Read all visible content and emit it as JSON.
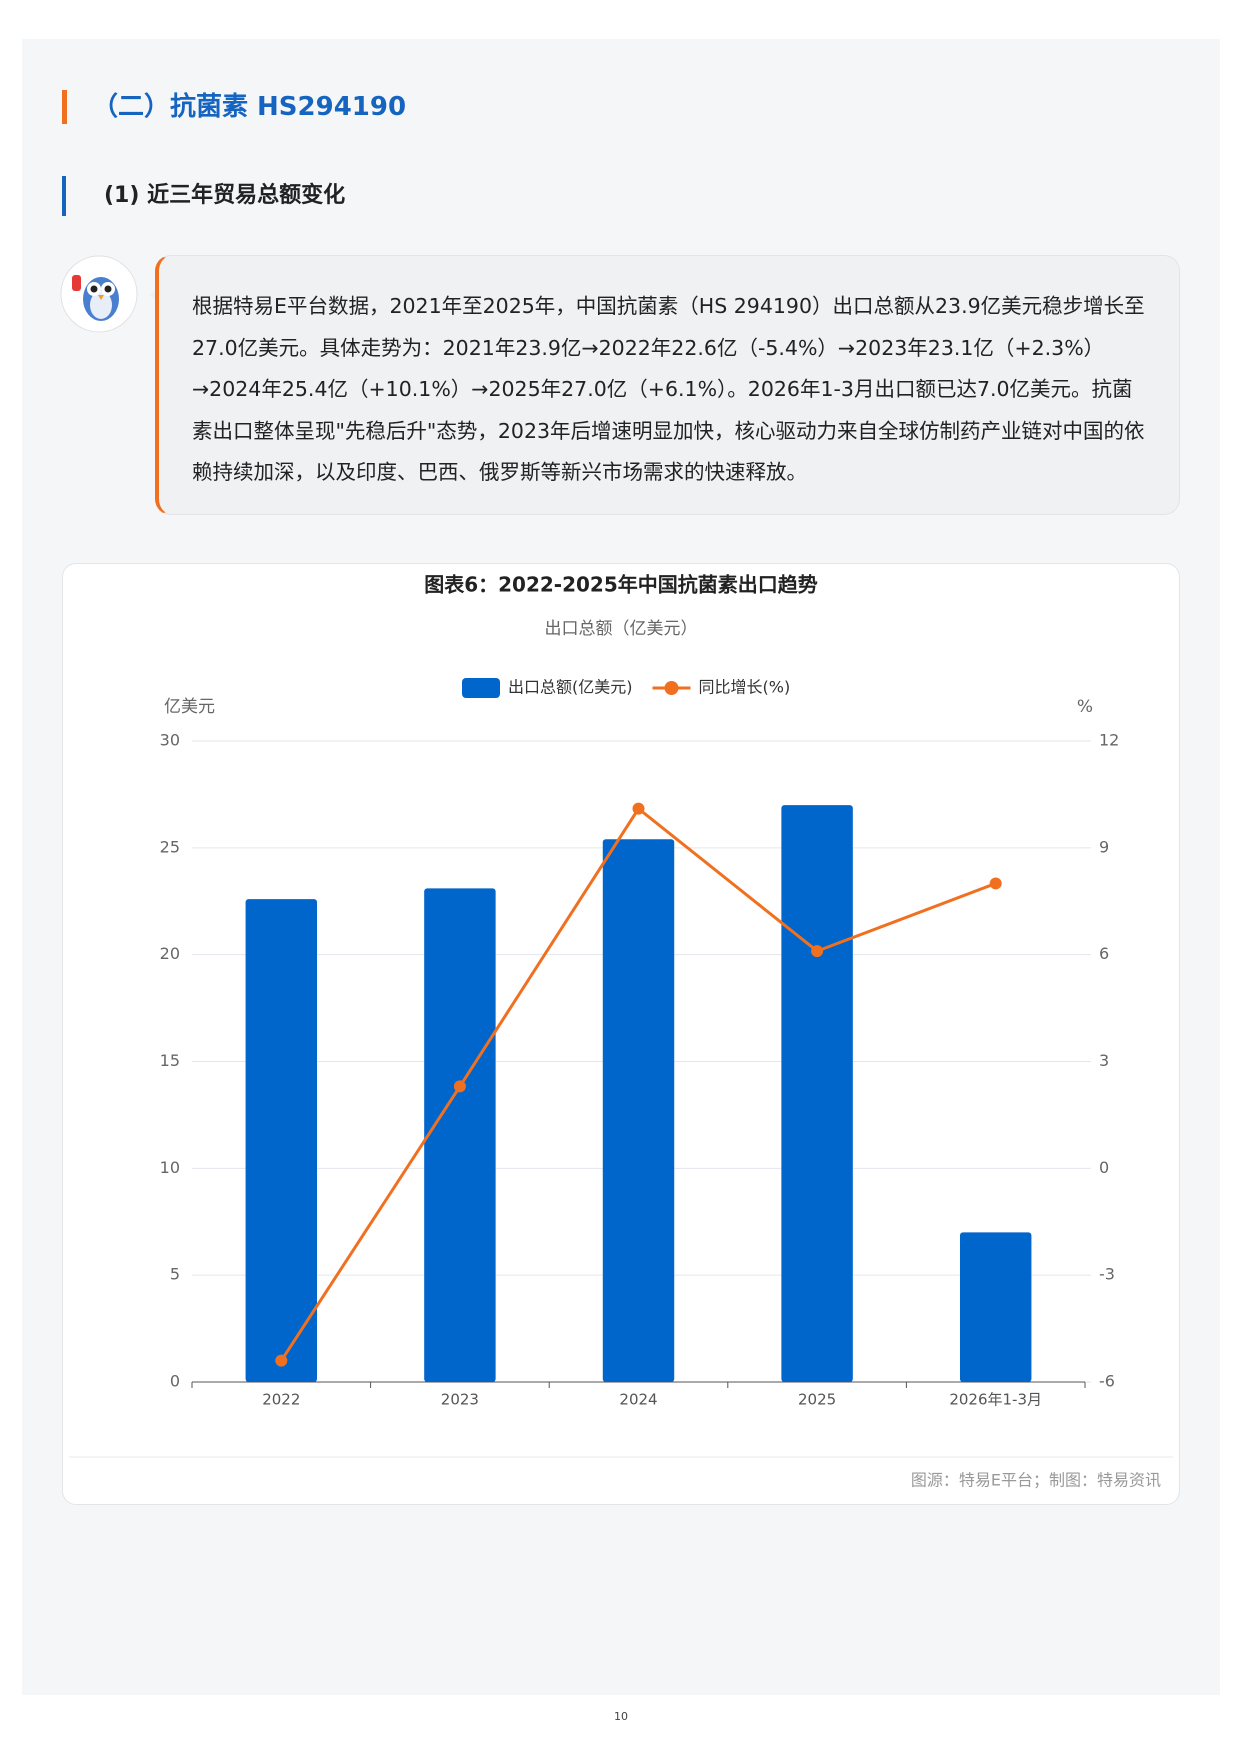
{
  "header": {
    "title": "（二）抗菌素 HS294190",
    "subtitle": "(1) 近三年贸易总额变化"
  },
  "note": {
    "text": "根据特易E平台数据，2021年至2025年，中国抗菌素（HS 294190）出口总额从23.9亿美元稳步增长至27.0亿美元。具体走势为：2021年23.9亿→2022年22.6亿（-5.4%）→2023年23.1亿（+2.3%）→2024年25.4亿（+10.1%）→2025年27.0亿（+6.1%）。2026年1-3月出口额已达7.0亿美元。抗菌素出口整体呈现\"先稳后升\"态势，2023年后增速明显加快，核心驱动力来自全球仿制药产业链对中国的依赖持续加深，以及印度、巴西、俄罗斯等新兴市场需求的快速释放。"
  },
  "chart_data": {
    "type": "bar_line",
    "title": "图表6：2022-2025年中国抗菌素出口趋势",
    "subtitle": "出口总额（亿美元）",
    "categories": [
      "2022",
      "2023",
      "2024",
      "2025",
      "2026年1-3月"
    ],
    "series": [
      {
        "name": "出口总额(亿美元)",
        "type": "bar",
        "color": "#0066cc",
        "values": [
          22.6,
          23.1,
          25.4,
          27.0,
          7.0
        ]
      },
      {
        "name": "同比增长(%)",
        "type": "line",
        "color": "#f07020",
        "axis": "y2",
        "values": [
          -5.4,
          2.3,
          10.1,
          6.1,
          8.0
        ]
      }
    ],
    "y_label": "亿美元",
    "y2_label": "%",
    "ylim": [
      0,
      30
    ],
    "yticks": [
      0,
      5,
      10,
      15,
      20,
      25,
      30
    ],
    "y2lim": [
      -6,
      12
    ],
    "y2ticks": [
      -6,
      -3,
      0,
      3,
      6,
      9,
      12
    ],
    "grid": true,
    "legend": "top",
    "source": "图源：特易E平台；制图：特易资讯"
  },
  "page": {
    "number": "10"
  }
}
